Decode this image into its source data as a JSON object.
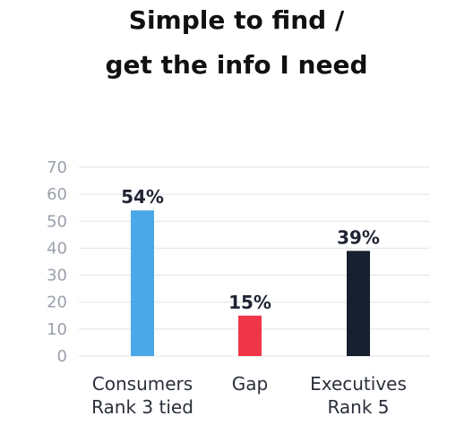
{
  "chart_data": {
    "type": "bar",
    "title_lines": [
      "Simple to find /",
      "get the info I need"
    ],
    "xlabel": "",
    "ylabel": "",
    "ylim": [
      0,
      70
    ],
    "yticks": [
      0,
      10,
      20,
      30,
      40,
      50,
      60,
      70
    ],
    "grid": true,
    "legend": "none",
    "categories": [
      [
        "Consumers",
        "Rank 3 tied"
      ],
      [
        "Gap"
      ],
      [
        "Executives",
        "Rank 5"
      ]
    ],
    "values": [
      54,
      15,
      39
    ],
    "data_labels": [
      "54%",
      "15%",
      "39%"
    ],
    "colors": [
      "#4aa8e8",
      "#f03648",
      "#17202e"
    ]
  }
}
